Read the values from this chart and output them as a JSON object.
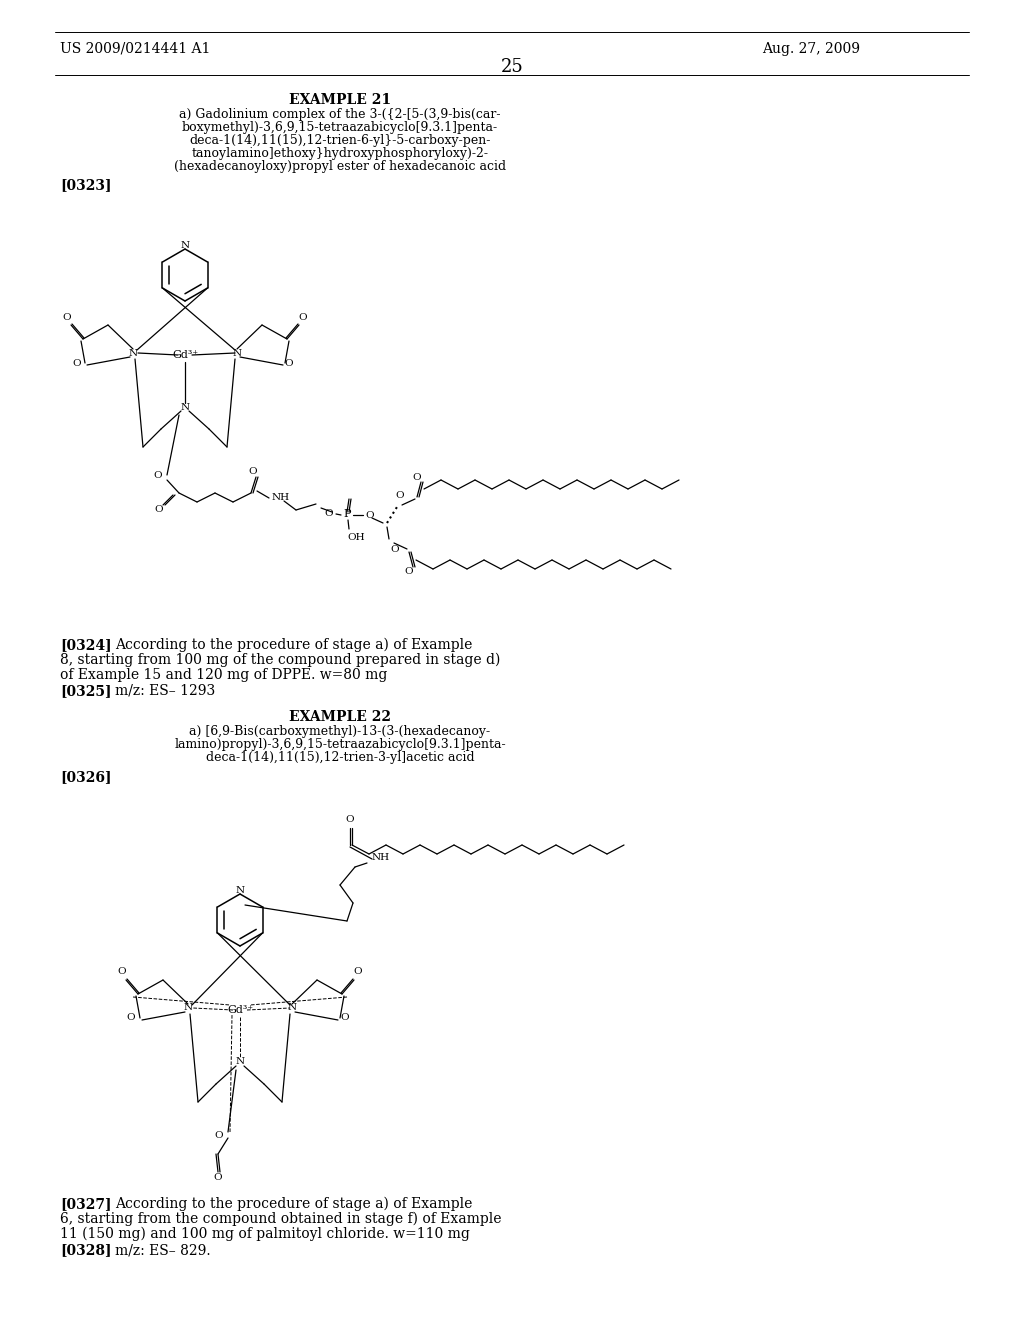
{
  "background_color": "#ffffff",
  "page_number": "25",
  "header_left": "US 2009/0214441 A1",
  "header_right": "Aug. 27, 2009",
  "example21_title": "EXAMPLE 21",
  "example21_sub1": "a) Gadolinium complex of the 3-({2-[5-(3,9-bis(car-",
  "example21_sub2": "boxymethyl)-3,6,9,15-tetraazabicyclo[9.3.1]penta-",
  "example21_sub3": "deca-1(14),11(15),12-trien-6-yl}-5-carboxy-pen-",
  "example21_sub4": "tanoylamino]ethoxy}hydroxyphosphoryloxy)-2-",
  "example21_sub5": "(hexadecanoyloxy)propyl ester of hexadecanoic acid",
  "ref0323": "[0323]",
  "ref0324_bold": "[0324]",
  "ref0324_text1": "According to the procedure of stage a) of Example",
  "ref0324_text2": "8, starting from 100 mg of the compound prepared in stage d)",
  "ref0324_text3": "of Example 15 and 120 mg of DPPE. w=80 mg",
  "ref0325_bold": "[0325]",
  "ref0325_text": "m/z: ES– 1293",
  "example22_title": "EXAMPLE 22",
  "example22_sub1": "a) [6,9-Bis(carboxymethyl)-13-(3-(hexadecanoy-",
  "example22_sub2": "lamino)propyl)-3,6,9,15-tetraazabicyclo[9.3.1]penta-",
  "example22_sub3": "deca-1(14),11(15),12-trien-3-yl]acetic acid",
  "ref0326": "[0326]",
  "ref0327_bold": "[0327]",
  "ref0327_text1": "According to the procedure of stage a) of Example",
  "ref0327_text2": "6, starting from the compound obtained in stage f) of Example",
  "ref0327_text3": "11 (150 mg) and 100 mg of palmitoyl chloride. w=110 mg",
  "ref0328_bold": "[0328]",
  "ref0328_text": "m/z: ES– 829."
}
